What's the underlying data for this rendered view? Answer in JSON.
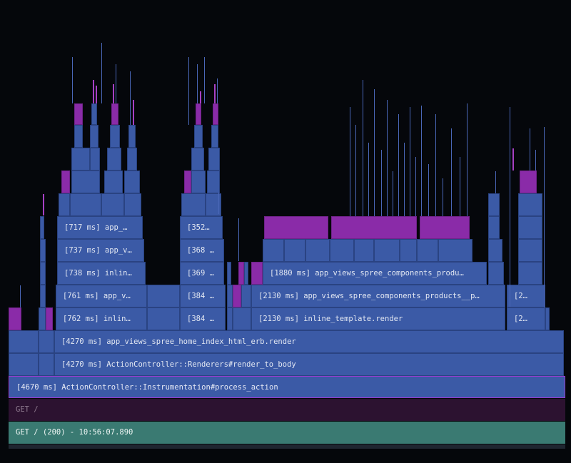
{
  "colors": {
    "background": "#05070b",
    "frame": "#3b5aa6",
    "frame_border": "#2a4382",
    "frame_highlight": "#8a2ba8",
    "get_band": "#2c1230",
    "request_band": "#3a7a72"
  },
  "bands": {
    "root": "[4670 ms] ActionController::Instrumentation#process_action",
    "get": "GET /",
    "request": "GET / (200) - 10:56:07.890"
  },
  "frames": [
    {
      "label": "[4270 ms] ActionController::Renderers#render_to_body"
    },
    {
      "label": "[4270 ms] app_views_spree_home_index_html_erb.render"
    },
    {
      "label": "[762 ms] inlin…"
    },
    {
      "label": "[761 ms] app_v…"
    },
    {
      "label": "[738 ms] inlin…"
    },
    {
      "label": "[737 ms] app_v…"
    },
    {
      "label": "[717 ms] app_…"
    },
    {
      "label": "[384 …"
    },
    {
      "label": "[384 …"
    },
    {
      "label": "[369 …"
    },
    {
      "label": "[368 …"
    },
    {
      "label": "[352…"
    },
    {
      "label": "[2130 ms] inline_template.render"
    },
    {
      "label": "[2130 ms] app_views_spree_components_products__p…"
    },
    {
      "label": "[1880 ms] app_views_spree_components_produ…"
    },
    {
      "label": "[2…"
    },
    {
      "label": "[2…"
    }
  ]
}
